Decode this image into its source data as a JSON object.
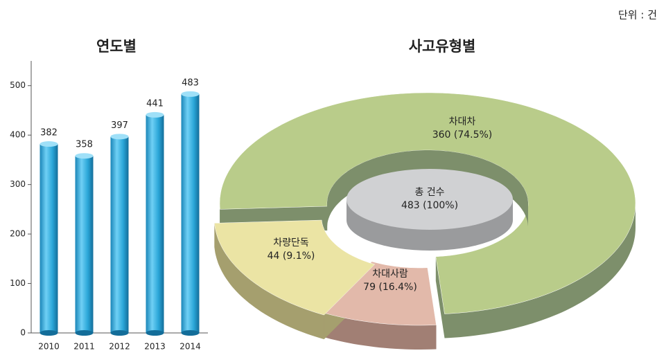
{
  "unit": "단위 : 건",
  "chart_data": [
    {
      "type": "bar",
      "title": "연도별",
      "categories": [
        "2010",
        "2011",
        "2012",
        "2013",
        "2014"
      ],
      "values": [
        382,
        358,
        397,
        441,
        483
      ],
      "color": "#2aa6d8",
      "ylim": [
        0,
        550
      ],
      "yticks": [
        0,
        100,
        200,
        300,
        400,
        500
      ],
      "grid": false
    },
    {
      "type": "donut",
      "title": "사고유형별",
      "categories": [
        "차대차",
        "차량단독",
        "차대사람"
      ],
      "values": [
        360,
        44,
        79
      ],
      "value_labels": [
        "360 (74.5%)",
        "44 (9.1%)",
        "79 (16.4%)"
      ],
      "colors": [
        "#b9cc8a",
        "#e2b9aa",
        "#ebe4a4"
      ],
      "center_label": "총 건수",
      "total_label": "483 (100%)"
    }
  ]
}
